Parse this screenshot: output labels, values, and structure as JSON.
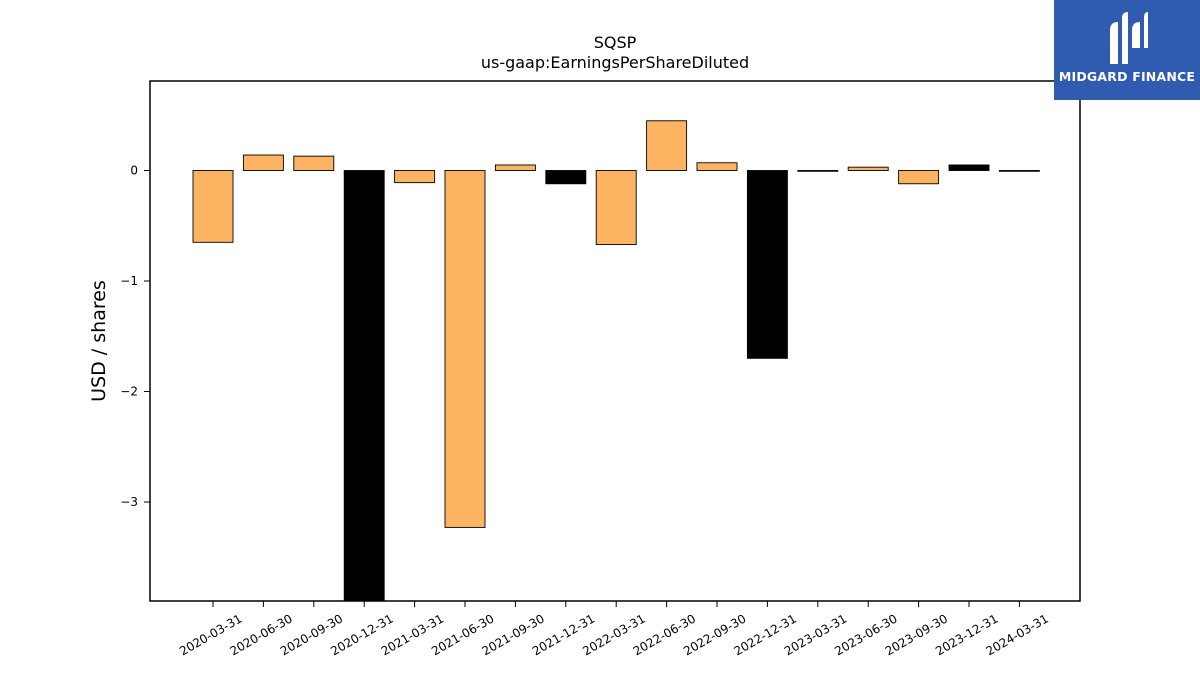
{
  "brand": {
    "name": "MIDGARD FINANCE",
    "background": "#2f5bb0"
  },
  "chart_data": {
    "type": "bar",
    "title": "SQSP",
    "subtitle": "us-gaap:EarningsPerShareDiluted",
    "ylabel": "USD / shares",
    "xlabel": "",
    "ylim": [
      -3.9,
      0.8
    ],
    "yticks": [
      0,
      -1,
      -2,
      -3
    ],
    "ytick_labels": [
      "0",
      "−1",
      "−2",
      "−3"
    ],
    "categories": [
      "2020-03-31",
      "2020-06-30",
      "2020-09-30",
      "2020-12-31",
      "2021-03-31",
      "2021-06-30",
      "2021-09-30",
      "2021-12-31",
      "2022-03-31",
      "2022-06-30",
      "2022-09-30",
      "2022-12-31",
      "2023-03-31",
      "2023-06-30",
      "2023-09-30",
      "2023-12-31",
      "2024-03-31"
    ],
    "values": [
      -0.65,
      0.14,
      0.13,
      -3.9,
      -0.11,
      -3.23,
      0.05,
      -0.12,
      -0.67,
      0.45,
      0.07,
      -1.7,
      0.0,
      0.03,
      -0.12,
      0.05,
      0.0
    ],
    "bar_colors": [
      "#fdb462",
      "#fdb462",
      "#fdb462",
      "#000000",
      "#fdb462",
      "#fdb462",
      "#fdb462",
      "#000000",
      "#fdb462",
      "#fdb462",
      "#fdb462",
      "#000000",
      "#fdb462",
      "#fdb462",
      "#fdb462",
      "#000000",
      "#fdb462"
    ],
    "grid": false,
    "legend": "none"
  }
}
